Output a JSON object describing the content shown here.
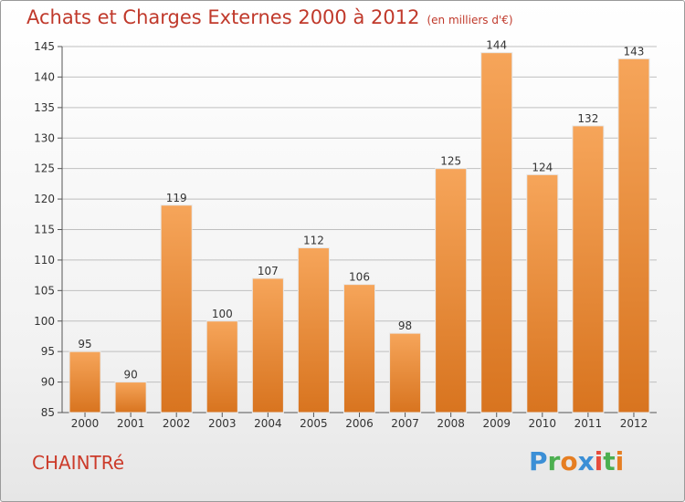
{
  "title": "Achats et Charges Externes 2000 à 2012",
  "unit": "(en milliers d'€)",
  "commune": "CHAINTRé",
  "logo": {
    "letters": [
      "P",
      "r",
      "o",
      "x",
      "i",
      "t",
      "i"
    ],
    "colors": [
      "#3b8fd6",
      "#4caf50",
      "#e67e22",
      "#3b8fd6",
      "#e74c3c",
      "#4caf50",
      "#e67e22"
    ]
  },
  "colors": {
    "bar_top": "#f6a55a",
    "bar_bottom": "#d8741f",
    "title": "#c0392b",
    "grid": "#bfbfbf"
  },
  "chart_data": {
    "type": "bar",
    "categories": [
      "2000",
      "2001",
      "2002",
      "2003",
      "2004",
      "2005",
      "2006",
      "2007",
      "2008",
      "2009",
      "2010",
      "2011",
      "2012"
    ],
    "values": [
      95,
      90,
      119,
      100,
      107,
      112,
      106,
      98,
      125,
      144,
      124,
      132,
      143
    ],
    "ylim": [
      85,
      145
    ],
    "yticks": [
      85,
      90,
      95,
      100,
      105,
      110,
      115,
      120,
      125,
      130,
      135,
      140,
      145
    ],
    "grid": true,
    "data_labels": true
  }
}
